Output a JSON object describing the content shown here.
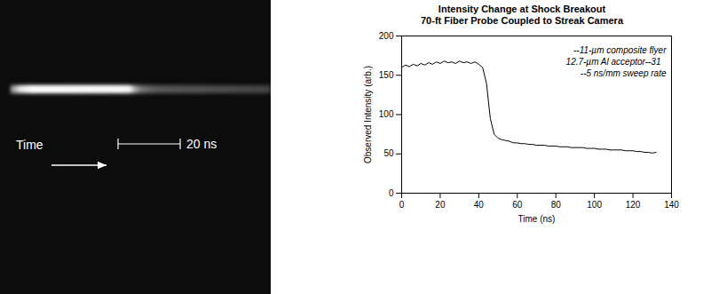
{
  "image_panel": {
    "time_label": "Time",
    "scale_bar_label": "20 ns"
  },
  "chart_data": {
    "type": "line",
    "title": "Intensity Change at Shock Breakout",
    "subtitle": "70-ft Fiber Probe Coupled to Streak Camera",
    "x_label": "Time (ns)",
    "y_label": "Observed Intensity (arb.)",
    "annotations": [
      "--11-µm composite flyer",
      "12.7-µm Al acceptor--31",
      "--5 ns/mm sweep rate"
    ],
    "color": "#000000",
    "x": [
      0,
      2,
      4,
      6,
      8,
      10,
      12,
      14,
      16,
      18,
      20,
      22,
      24,
      26,
      28,
      30,
      32,
      34,
      36,
      38,
      40,
      42,
      44,
      46,
      48,
      50,
      52,
      54,
      56,
      58,
      60,
      62,
      64,
      66,
      68,
      70,
      72,
      74,
      76,
      78,
      80,
      82,
      84,
      86,
      88,
      90,
      92,
      94,
      96,
      98,
      100,
      102,
      104,
      106,
      108,
      110,
      112,
      114,
      116,
      118,
      120,
      122,
      124,
      126,
      128,
      130,
      132
    ],
    "values": [
      160,
      163,
      161,
      164,
      162,
      165,
      163,
      166,
      164,
      167,
      165,
      168,
      166,
      167,
      165,
      168,
      166,
      167,
      165,
      167,
      164,
      160,
      140,
      95,
      75,
      70,
      68,
      67,
      66,
      64,
      64,
      63,
      63,
      62,
      62,
      61,
      61,
      61,
      60,
      60,
      60,
      59,
      59,
      59,
      58,
      58,
      58,
      58,
      57,
      57,
      57,
      56,
      56,
      56,
      55,
      55,
      55,
      55,
      54,
      54,
      54,
      53,
      53,
      52,
      52,
      51,
      52
    ],
    "xlim": [
      0,
      140
    ],
    "xticks": [
      0,
      20,
      40,
      60,
      80,
      100,
      120,
      140
    ],
    "ylim": [
      0,
      200
    ],
    "yticks": [
      0,
      50,
      100,
      150,
      200
    ]
  }
}
